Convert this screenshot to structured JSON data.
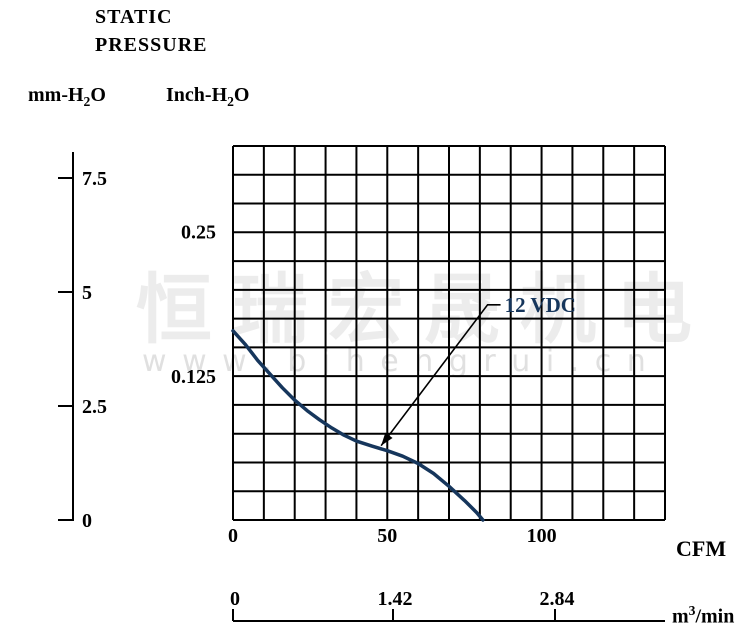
{
  "title": {
    "line1": "STATIC",
    "line2": "PRESSURE"
  },
  "units": {
    "mm": {
      "pre": "mm-H",
      "sub": "2",
      "post": "O"
    },
    "inch": {
      "pre": "Inch-H",
      "sub": "2",
      "post": "O"
    },
    "m3": {
      "pre": "m",
      "sup": "3",
      "post": "/min"
    }
  },
  "watermark": {
    "line1": "恒瑞宏晟机电",
    "line2": "w w w . b j h e n g r u i . c n"
  },
  "colors": {
    "curve": "#16365c",
    "grid": "#000000",
    "annotation_text": "#16365c",
    "watermark_cjk": "#ececec",
    "watermark_url": "#e0e0e0"
  },
  "chart_data": {
    "type": "line",
    "title": "STATIC PRESSURE",
    "grid": {
      "columns": 14,
      "rows": 13,
      "on": true
    },
    "x_axis": {
      "label": "CFM",
      "ticks": [
        "0",
        "50",
        "100"
      ],
      "tick_values": [
        0,
        50,
        100
      ],
      "range": [
        0,
        140
      ]
    },
    "x_axis_secondary": {
      "label": "m3/min",
      "ticks": [
        "0",
        "1.42",
        "2.84"
      ]
    },
    "y_axis_left": {
      "label": "mm-H2O",
      "ticks": [
        "0",
        "2.5",
        "5",
        "7.5"
      ],
      "tick_values": [
        0,
        2.5,
        5,
        7.5
      ],
      "range": [
        0,
        8.1
      ]
    },
    "y_axis_inner": {
      "label": "Inch-H2O",
      "ticks": [
        "0.125",
        "0.25"
      ],
      "tick_values": [
        0.125,
        0.25
      ]
    },
    "series": [
      {
        "name": "12 VDC",
        "max_static_pressure_mm_h2o": 4.15,
        "max_airflow_cfm": 81,
        "points_cfm_mm": [
          [
            0,
            4.15
          ],
          [
            4,
            3.85
          ],
          [
            8,
            3.5
          ],
          [
            12,
            3.2
          ],
          [
            16,
            2.9
          ],
          [
            20,
            2.63
          ],
          [
            24,
            2.4
          ],
          [
            28,
            2.2
          ],
          [
            32,
            2.02
          ],
          [
            36,
            1.86
          ],
          [
            40,
            1.73
          ],
          [
            45,
            1.62
          ],
          [
            50,
            1.52
          ],
          [
            55,
            1.4
          ],
          [
            60,
            1.24
          ],
          [
            65,
            1.02
          ],
          [
            70,
            0.74
          ],
          [
            75,
            0.43
          ],
          [
            79,
            0.16
          ],
          [
            81,
            0
          ]
        ]
      }
    ],
    "annotation": {
      "text": "12 VDC",
      "target_cfm_mm": [
        48,
        1.63
      ],
      "elbow_cfm_mm": [
        82.5,
        4.72
      ]
    }
  }
}
